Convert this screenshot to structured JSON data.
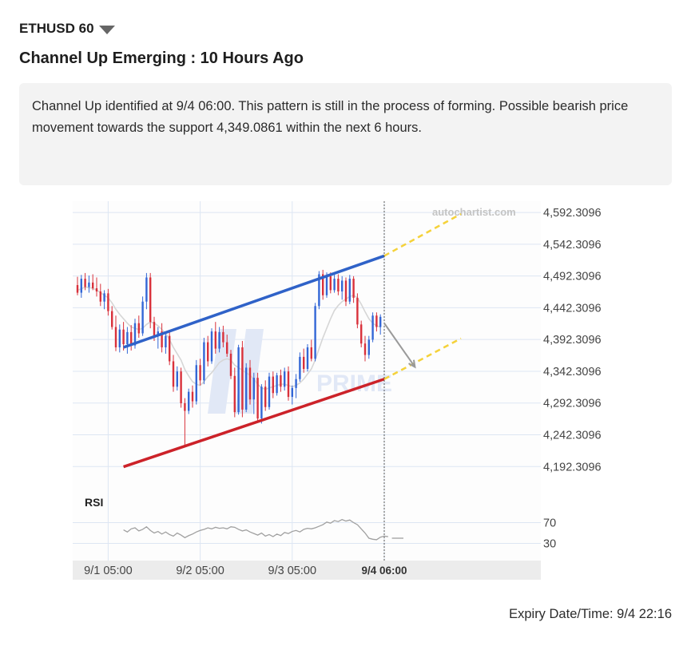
{
  "header": {
    "symbol": "ETHUSD 60",
    "title": "Channel Up Emerging : 10 Hours Ago"
  },
  "description": "Channel Up identified at 9/4 06:00. This pattern is still in the process of forming. Possible bearish price movement towards the support 4,349.0861 within the next 6 hours.",
  "watermark": "autochartist.com",
  "watermark2": "PRIME",
  "expiry": "Expiry Date/Time: 9/4 22:16",
  "colors": {
    "bull": "#3367d6",
    "bear": "#d9313b",
    "resistance": "#2f62c8",
    "support": "#cc2229",
    "projection": "#f5d23a",
    "grid": "#dde6f3",
    "chart_bg": "#fdfdfd"
  },
  "chart_data": [
    {
      "type": "candlestick",
      "title": "",
      "x_tick_labels": [
        "9/1 05:00",
        "9/2 05:00",
        "9/3 05:00",
        "9/4 06:00"
      ],
      "y_tick_labels": [
        "4,592.3096",
        "4,542.3096",
        "4,492.3096",
        "4,442.3096",
        "4,392.3096",
        "4,342.3096",
        "4,292.3096",
        "4,242.3096",
        "4,192.3096"
      ],
      "y_ticks": [
        4592.3096,
        4542.3096,
        4492.3096,
        4442.3096,
        4392.3096,
        4342.3096,
        4292.3096,
        4242.3096,
        4192.3096
      ],
      "ylim": [
        4160,
        4610
      ],
      "x_tick_index": [
        8,
        32,
        56,
        80
      ],
      "marker_index": 80,
      "series": [
        {
          "values": [
            [
              4478,
              4491,
              4462,
              4466
            ],
            [
              4466,
              4494,
              4458,
              4488
            ],
            [
              4488,
              4497,
              4470,
              4475
            ],
            [
              4475,
              4493,
              4466,
              4482
            ],
            [
              4482,
              4495,
              4470,
              4473
            ],
            [
              4473,
              4490,
              4460,
              4468
            ],
            [
              4468,
              4480,
              4445,
              4452
            ],
            [
              4452,
              4470,
              4440,
              4465
            ],
            [
              4465,
              4472,
              4430,
              4437
            ],
            [
              4437,
              4445,
              4408,
              4412
            ],
            [
              4412,
              4430,
              4374,
              4380
            ],
            [
              4380,
              4416,
              4372,
              4408
            ],
            [
              4408,
              4420,
              4375,
              4385
            ],
            [
              4385,
              4412,
              4370,
              4404
            ],
            [
              4404,
              4415,
              4375,
              4383
            ],
            [
              4383,
              4425,
              4378,
              4418
            ],
            [
              4418,
              4430,
              4395,
              4402
            ],
            [
              4402,
              4460,
              4398,
              4452
            ],
            [
              4452,
              4497,
              4440,
              4490
            ],
            [
              4490,
              4497,
              4410,
              4420
            ],
            [
              4420,
              4428,
              4390,
              4398
            ],
            [
              4398,
              4412,
              4378,
              4405
            ],
            [
              4405,
              4418,
              4372,
              4380
            ],
            [
              4380,
              4405,
              4370,
              4398
            ],
            [
              4398,
              4404,
              4352,
              4358
            ],
            [
              4358,
              4368,
              4310,
              4318
            ],
            [
              4318,
              4350,
              4312,
              4342
            ],
            [
              4342,
              4348,
              4285,
              4292
            ],
            [
              4292,
              4300,
              4225,
              4280
            ],
            [
              4280,
              4315,
              4275,
              4310
            ],
            [
              4310,
              4320,
              4285,
              4295
            ],
            [
              4295,
              4360,
              4290,
              4352
            ],
            [
              4352,
              4362,
              4320,
              4328
            ],
            [
              4328,
              4395,
              4322,
              4388
            ],
            [
              4388,
              4398,
              4350,
              4358
            ],
            [
              4358,
              4410,
              4354,
              4405
            ],
            [
              4405,
              4420,
              4370,
              4378
            ],
            [
              4378,
              4412,
              4372,
              4404
            ],
            [
              4404,
              4414,
              4380,
              4388
            ],
            [
              4388,
              4400,
              4365,
              4370
            ],
            [
              4370,
              4376,
              4330,
              4335
            ],
            [
              4335,
              4348,
              4270,
              4278
            ],
            [
              4278,
              4384,
              4274,
              4380
            ],
            [
              4380,
              4390,
              4270,
              4282
            ],
            [
              4282,
              4355,
              4278,
              4348
            ],
            [
              4348,
              4360,
              4290,
              4298
            ],
            [
              4298,
              4340,
              4275,
              4332
            ],
            [
              4332,
              4340,
              4262,
              4268
            ],
            [
              4268,
              4322,
              4260,
              4318
            ],
            [
              4318,
              4328,
              4280,
              4286
            ],
            [
              4286,
              4340,
              4282,
              4334
            ],
            [
              4334,
              4342,
              4300,
              4308
            ],
            [
              4308,
              4340,
              4304,
              4336
            ],
            [
              4336,
              4345,
              4310,
              4318
            ],
            [
              4318,
              4348,
              4312,
              4342
            ],
            [
              4342,
              4350,
              4296,
              4302
            ],
            [
              4302,
              4320,
              4290,
              4316
            ],
            [
              4316,
              4338,
              4300,
              4330
            ],
            [
              4330,
              4372,
              4326,
              4365
            ],
            [
              4365,
              4378,
              4340,
              4346
            ],
            [
              4346,
              4385,
              4342,
              4380
            ],
            [
              4380,
              4392,
              4358,
              4362
            ],
            [
              4362,
              4450,
              4358,
              4445
            ],
            [
              4445,
              4500,
              4440,
              4495
            ],
            [
              4495,
              4502,
              4455,
              4462
            ],
            [
              4462,
              4498,
              4458,
              4492
            ],
            [
              4492,
              4498,
              4465,
              4470
            ],
            [
              4470,
              4495,
              4466,
              4488
            ],
            [
              4488,
              4495,
              4462,
              4468
            ],
            [
              4468,
              4492,
              4455,
              4485
            ],
            [
              4485,
              4490,
              4445,
              4452
            ],
            [
              4452,
              4494,
              4448,
              4488
            ],
            [
              4488,
              4492,
              4450,
              4458
            ],
            [
              4458,
              4465,
              4410,
              4416
            ],
            [
              4416,
              4422,
              4380,
              4386
            ],
            [
              4386,
              4398,
              4358,
              4368
            ],
            [
              4368,
              4398,
              4362,
              4392
            ],
            [
              4392,
              4435,
              4388,
              4430
            ],
            [
              4430,
              4435,
              4405,
              4412
            ],
            [
              4412,
              4432,
              4400,
              4428
            ]
          ]
        }
      ],
      "moving_average": [
        4470,
        4472,
        4475,
        4474,
        4473,
        4470,
        4466,
        4462,
        4458,
        4450,
        4440,
        4432,
        4425,
        4418,
        4412,
        4410,
        4408,
        4410,
        4416,
        4420,
        4418,
        4414,
        4408,
        4402,
        4392,
        4380,
        4370,
        4360,
        4345,
        4335,
        4326,
        4322,
        4320,
        4326,
        4334,
        4340,
        4348,
        4356,
        4360,
        4362,
        4360,
        4352,
        4348,
        4344,
        4340,
        4336,
        4330,
        4322,
        4316,
        4314,
        4316,
        4318,
        4320,
        4322,
        4322,
        4320,
        4318,
        4320,
        4324,
        4330,
        4338,
        4346,
        4360,
        4378,
        4395,
        4410,
        4425,
        4438,
        4446,
        4452,
        4456,
        4460,
        4462,
        4458,
        4448,
        4436,
        4425,
        4418,
        4414,
        4412
      ],
      "channel": {
        "resistance": [
          [
            12,
            4380
          ],
          [
            80,
            4524
          ]
        ],
        "support": [
          [
            12,
            4192
          ],
          [
            80,
            4330
          ]
        ],
        "projection_upper": [
          [
            80,
            4524
          ],
          [
            100,
            4590
          ]
        ],
        "projection_lower": [
          [
            80,
            4330
          ],
          [
            100,
            4394
          ]
        ],
        "forecast_arrow": [
          [
            80,
            4418
          ],
          [
            88,
            4349.0861
          ]
        ]
      }
    },
    {
      "type": "line",
      "title": "RSI",
      "y_tick_labels": [
        "70",
        "30"
      ],
      "y_ticks": [
        70,
        30
      ],
      "ylim": [
        0,
        100
      ],
      "series": [
        {
          "values": [
            56,
            52,
            58,
            60,
            54,
            57,
            62,
            55,
            50,
            53,
            48,
            52,
            47,
            44,
            50,
            46,
            41,
            45,
            48,
            52,
            55,
            57,
            60,
            58,
            61,
            59,
            60,
            58,
            62,
            61,
            57,
            54,
            56,
            52,
            49,
            46,
            50,
            44,
            47,
            43,
            48,
            45,
            51,
            49,
            53,
            55,
            52,
            57,
            59,
            58,
            60,
            63,
            66,
            71,
            69,
            74,
            72,
            76,
            73,
            75,
            70,
            66,
            58,
            50,
            40,
            38,
            37,
            42,
            44,
            43
          ]
        }
      ]
    }
  ]
}
